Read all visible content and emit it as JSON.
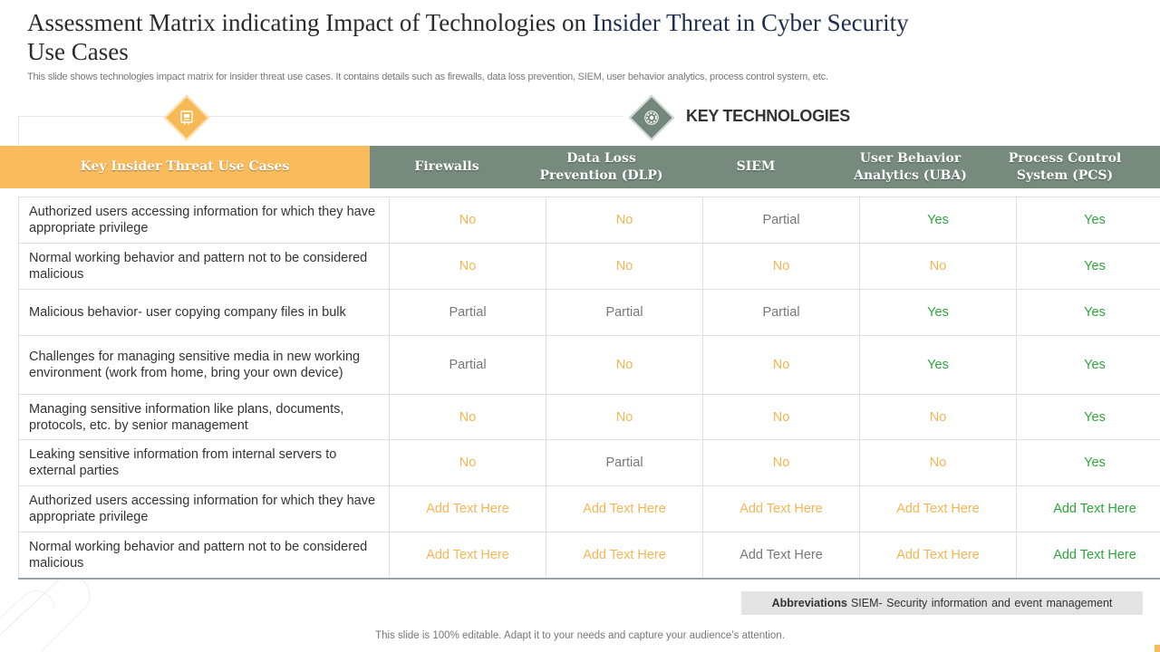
{
  "title": {
    "part1": "Assessment Matrix indicating Impact of Technologies on ",
    "part2": "Insider Threat in Cyber Security",
    "part3": "Use Cases"
  },
  "subtitle": "This slide shows technologies impact matrix for insider threat use cases. It contains details such as firewalls, data loss prevention, SIEM, user behavior analytics, process control system, etc.",
  "key_technologies_label": "KEY TECHNOLOGIES",
  "icons": {
    "left": "document-icon",
    "right": "gear-icon"
  },
  "colors": {
    "accent_orange": "#f9bb5c",
    "accent_green": "#768a7e",
    "yes": "#2ea53a",
    "no": "#f5b553",
    "partial": "#777777"
  },
  "table": {
    "use_case_header": "Key Insider Threat Use Cases",
    "tech_headers": [
      "Firewalls",
      "Data Loss Prevention (DLP)",
      "SIEM",
      "User Behavior Analytics (UBA)",
      "Process Control System (PCS)"
    ],
    "rows": [
      {
        "use_case": "Authorized users accessing information for which they have appropriate privilege",
        "cells": [
          {
            "text": "No",
            "status": "no"
          },
          {
            "text": "No",
            "status": "no"
          },
          {
            "text": "Partial",
            "status": "partial"
          },
          {
            "text": "Yes",
            "status": "yes"
          },
          {
            "text": "Yes",
            "status": "yes"
          }
        ]
      },
      {
        "use_case": "Normal working behavior and pattern not to be considered malicious",
        "cells": [
          {
            "text": "No",
            "status": "no"
          },
          {
            "text": "No",
            "status": "no"
          },
          {
            "text": "No",
            "status": "no"
          },
          {
            "text": "No",
            "status": "no"
          },
          {
            "text": "Yes",
            "status": "yes"
          }
        ]
      },
      {
        "use_case": "Malicious behavior- user copying company files in bulk",
        "cells": [
          {
            "text": "Partial",
            "status": "partial"
          },
          {
            "text": "Partial",
            "status": "partial"
          },
          {
            "text": "Partial",
            "status": "partial"
          },
          {
            "text": "Yes",
            "status": "yes"
          },
          {
            "text": "Yes",
            "status": "yes"
          }
        ]
      },
      {
        "use_case": "Challenges for managing sensitive media in new working environment (work from home, bring your own device)",
        "cells": [
          {
            "text": "Partial",
            "status": "partial"
          },
          {
            "text": "No",
            "status": "no"
          },
          {
            "text": "No",
            "status": "no"
          },
          {
            "text": "Yes",
            "status": "yes"
          },
          {
            "text": "Yes",
            "status": "yes"
          }
        ]
      },
      {
        "use_case": "Managing sensitive information like plans, documents, protocols, etc. by senior management",
        "cells": [
          {
            "text": "No",
            "status": "no"
          },
          {
            "text": "No",
            "status": "no"
          },
          {
            "text": "No",
            "status": "no"
          },
          {
            "text": "No",
            "status": "no"
          },
          {
            "text": "Yes",
            "status": "yes"
          }
        ]
      },
      {
        "use_case": "Leaking sensitive information from internal servers to external parties",
        "cells": [
          {
            "text": "No",
            "status": "no"
          },
          {
            "text": "Partial",
            "status": "partial"
          },
          {
            "text": "No",
            "status": "no"
          },
          {
            "text": "No",
            "status": "no"
          },
          {
            "text": "Yes",
            "status": "yes"
          }
        ]
      },
      {
        "use_case": "Authorized users accessing information for which they have appropriate privilege",
        "cells": [
          {
            "text": "Add Text Here",
            "status": "no"
          },
          {
            "text": "Add Text Here",
            "status": "no"
          },
          {
            "text": "Add Text Here",
            "status": "no"
          },
          {
            "text": "Add Text Here",
            "status": "no"
          },
          {
            "text": "Add Text Here",
            "status": "yes"
          }
        ]
      },
      {
        "use_case": "Normal working behavior and pattern not to be considered malicious",
        "cells": [
          {
            "text": "Add Text Here",
            "status": "no"
          },
          {
            "text": "Add Text Here",
            "status": "no"
          },
          {
            "text": "Add Text Here",
            "status": "partial"
          },
          {
            "text": "Add Text Here",
            "status": "no"
          },
          {
            "text": "Add Text Here",
            "status": "yes"
          }
        ]
      }
    ]
  },
  "abbreviations": {
    "label": "Abbreviations",
    "text": "SIEM- Security information and event management"
  },
  "footer": "This slide is 100% editable. Adapt it to your needs and capture your audience’s attention."
}
